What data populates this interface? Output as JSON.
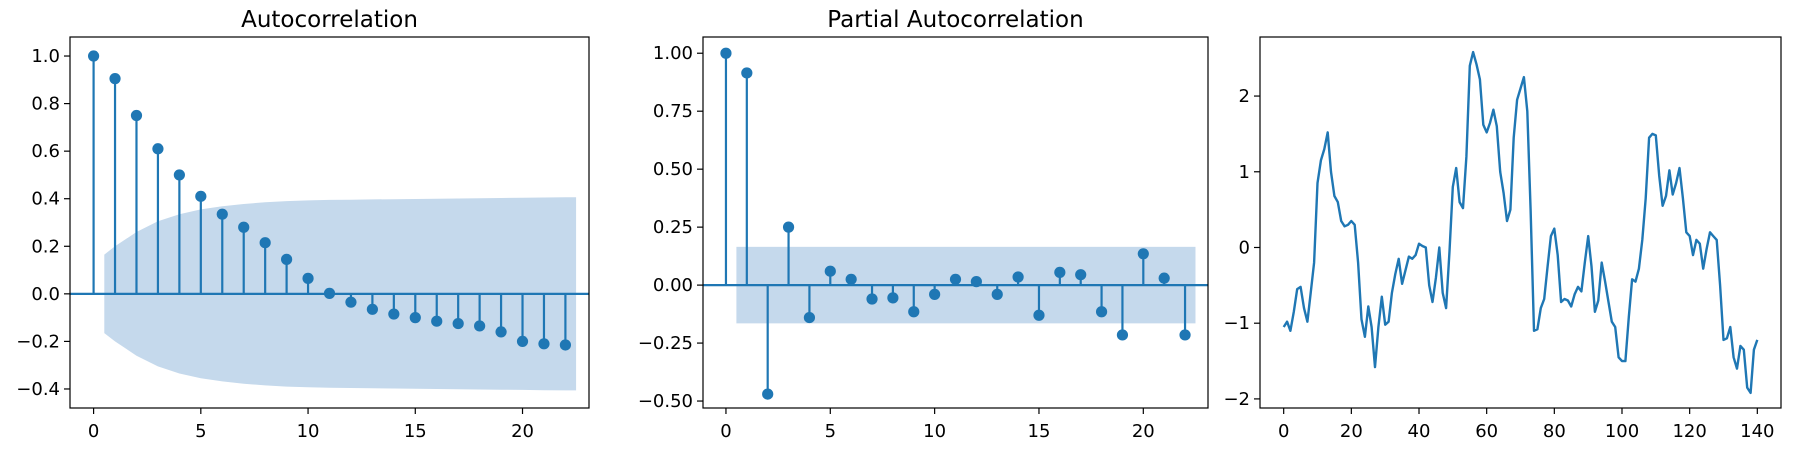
{
  "colors": {
    "series": "#1f77b4",
    "band": "#c5d9ec",
    "axis": "#000000"
  },
  "chart_data": [
    {
      "type": "stem",
      "title": "Autocorrelation",
      "xlim": [
        -1.1,
        23.1
      ],
      "ylim": [
        -0.48,
        1.08
      ],
      "xticks": [
        "0",
        "5",
        "10",
        "15",
        "20"
      ],
      "xtick_values": [
        0,
        5,
        10,
        15,
        20
      ],
      "yticks": [
        "−0.4",
        "−0.2",
        "0.0",
        "0.2",
        "0.4",
        "0.6",
        "0.8",
        "1.0"
      ],
      "ytick_values": [
        -0.4,
        -0.2,
        0.0,
        0.2,
        0.4,
        0.6,
        0.8,
        1.0
      ],
      "lags": [
        0,
        1,
        2,
        3,
        4,
        5,
        6,
        7,
        8,
        9,
        10,
        11,
        12,
        13,
        14,
        15,
        16,
        17,
        18,
        19,
        20,
        21,
        22
      ],
      "values": [
        1.0,
        0.905,
        0.75,
        0.61,
        0.5,
        0.41,
        0.335,
        0.28,
        0.215,
        0.145,
        0.065,
        0.002,
        -0.035,
        -0.065,
        -0.085,
        -0.1,
        -0.115,
        -0.125,
        -0.135,
        -0.16,
        -0.2,
        -0.21,
        -0.215
      ],
      "confidence_band": {
        "lags": [
          0.5,
          1,
          2,
          3,
          4,
          5,
          6,
          7,
          8,
          9,
          10,
          11,
          12,
          13,
          14,
          15,
          16,
          17,
          18,
          19,
          20,
          21,
          22,
          22.5
        ],
        "upper": [
          0.165,
          0.2,
          0.26,
          0.305,
          0.335,
          0.355,
          0.368,
          0.378,
          0.385,
          0.39,
          0.393,
          0.395,
          0.396,
          0.397,
          0.398,
          0.399,
          0.4,
          0.401,
          0.402,
          0.403,
          0.404,
          0.405,
          0.406,
          0.406
        ]
      },
      "zero_line": true,
      "grid": false
    },
    {
      "type": "stem",
      "title": "Partial Autocorrelation",
      "xlim": [
        -1.1,
        23.1
      ],
      "ylim": [
        -0.53,
        1.07
      ],
      "xticks": [
        "0",
        "5",
        "10",
        "15",
        "20"
      ],
      "xtick_values": [
        0,
        5,
        10,
        15,
        20
      ],
      "yticks": [
        "−0.50",
        "−0.25",
        "0.00",
        "0.25",
        "0.50",
        "0.75",
        "1.00"
      ],
      "ytick_values": [
        -0.5,
        -0.25,
        0.0,
        0.25,
        0.5,
        0.75,
        1.0
      ],
      "lags": [
        0,
        1,
        2,
        3,
        4,
        5,
        6,
        7,
        8,
        9,
        10,
        11,
        12,
        13,
        14,
        15,
        16,
        17,
        18,
        19,
        20,
        21,
        22
      ],
      "values": [
        1.0,
        0.915,
        -0.47,
        0.25,
        -0.14,
        0.06,
        0.025,
        -0.06,
        -0.055,
        -0.115,
        -0.04,
        0.025,
        0.015,
        -0.04,
        0.035,
        -0.13,
        0.055,
        0.045,
        -0.115,
        -0.215,
        0.135,
        0.03,
        -0.215
      ],
      "confidence_band": {
        "x_range": [
          0.5,
          22.5
        ],
        "upper": 0.165
      },
      "zero_line": true,
      "grid": false
    },
    {
      "type": "line",
      "title": "",
      "xlim": [
        -7,
        147
      ],
      "ylim": [
        -2.12,
        2.78
      ],
      "xticks": [
        "0",
        "20",
        "40",
        "60",
        "80",
        "100",
        "120",
        "140"
      ],
      "xtick_values": [
        0,
        20,
        40,
        60,
        80,
        100,
        120,
        140
      ],
      "yticks": [
        "−2",
        "−1",
        "0",
        "1",
        "2"
      ],
      "ytick_values": [
        -2,
        -1,
        0,
        1,
        2
      ],
      "x": [
        0,
        1,
        2,
        3,
        4,
        5,
        6,
        7,
        8,
        9,
        10,
        11,
        12,
        13,
        14,
        15,
        16,
        17,
        18,
        19,
        20,
        21,
        22,
        23,
        24,
        25,
        26,
        27,
        28,
        29,
        30,
        31,
        32,
        33,
        34,
        35,
        36,
        37,
        38,
        39,
        40,
        41,
        42,
        43,
        44,
        45,
        46,
        47,
        48,
        49,
        50,
        51,
        52,
        53,
        54,
        55,
        56,
        57,
        58,
        59,
        60,
        61,
        62,
        63,
        64,
        65,
        66,
        67,
        68,
        69,
        70,
        71,
        72,
        73,
        74,
        75,
        76,
        77,
        78,
        79,
        80,
        81,
        82,
        83,
        84,
        85,
        86,
        87,
        88,
        89,
        90,
        91,
        92,
        93,
        94,
        95,
        96,
        97,
        98,
        99,
        100,
        101,
        102,
        103,
        104,
        105,
        106,
        107,
        108,
        109,
        110,
        111,
        112,
        113,
        114,
        115,
        116,
        117,
        118,
        119,
        120,
        121,
        122,
        123,
        124,
        125,
        126,
        127,
        128,
        129,
        130,
        131,
        132,
        133,
        134,
        135,
        136,
        137,
        138,
        139,
        140
      ],
      "y": [
        -1.05,
        -0.98,
        -1.1,
        -0.85,
        -0.55,
        -0.52,
        -0.8,
        -0.98,
        -0.6,
        -0.2,
        0.85,
        1.15,
        1.3,
        1.52,
        1.0,
        0.68,
        0.6,
        0.35,
        0.28,
        0.3,
        0.35,
        0.3,
        -0.2,
        -0.95,
        -1.18,
        -0.78,
        -1.05,
        -1.58,
        -1.05,
        -0.65,
        -1.02,
        -0.98,
        -0.6,
        -0.35,
        -0.15,
        -0.48,
        -0.3,
        -0.12,
        -0.15,
        -0.1,
        0.05,
        0.02,
        0.0,
        -0.5,
        -0.72,
        -0.4,
        0.0,
        -0.6,
        -0.8,
        -0.05,
        0.8,
        1.05,
        0.6,
        0.52,
        1.2,
        2.4,
        2.58,
        2.42,
        2.22,
        1.62,
        1.52,
        1.65,
        1.82,
        1.6,
        1.0,
        0.72,
        0.35,
        0.5,
        1.45,
        1.95,
        2.1,
        2.25,
        1.8,
        0.5,
        -1.1,
        -1.08,
        -0.8,
        -0.68,
        -0.25,
        0.15,
        0.25,
        -0.1,
        -0.72,
        -0.68,
        -0.7,
        -0.78,
        -0.62,
        -0.52,
        -0.58,
        -0.2,
        0.15,
        -0.25,
        -0.85,
        -0.7,
        -0.2,
        -0.45,
        -0.72,
        -0.98,
        -1.05,
        -1.45,
        -1.5,
        -1.5,
        -0.92,
        -0.42,
        -0.45,
        -0.28,
        0.1,
        0.65,
        1.45,
        1.5,
        1.48,
        0.95,
        0.55,
        0.68,
        1.02,
        0.7,
        0.85,
        1.05,
        0.65,
        0.2,
        0.15,
        -0.1,
        0.1,
        0.05,
        -0.28,
        -0.02,
        0.2,
        0.15,
        0.1,
        -0.5,
        -1.22,
        -1.2,
        -1.05,
        -1.45,
        -1.6,
        -1.3,
        -1.35,
        -1.85,
        -1.92,
        -1.35,
        -1.22
      ]
    }
  ]
}
